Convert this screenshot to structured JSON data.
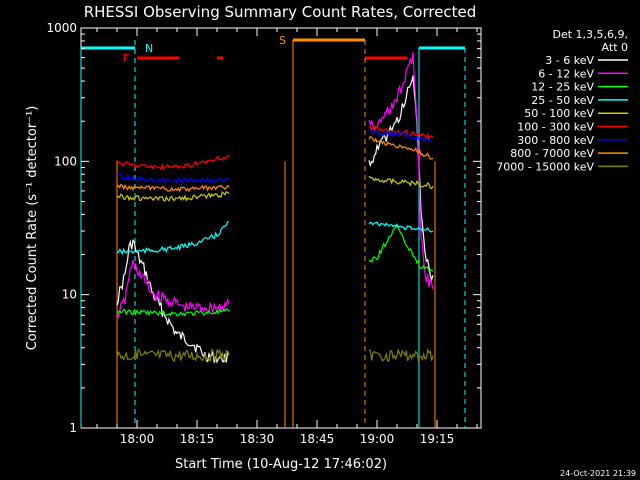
{
  "chart_data": {
    "type": "line",
    "title": "RHESSI Observing Summary Count Rates, Corrected",
    "xlabel": "Start Time (10-Aug-12 17:46:02)",
    "ylabel": "Corrected Count Rate (s⁻¹ detector⁻¹)",
    "y_scale": "log",
    "ylim": [
      1,
      1000
    ],
    "xlim_minutes": [
      0,
      100
    ],
    "x_tick_labels": [
      "18:00",
      "18:15",
      "18:30",
      "18:45",
      "19:00",
      "19:15"
    ],
    "y_tick_labels": [
      "1",
      "10",
      "100",
      "1000"
    ],
    "grid": false,
    "legend_position": "right",
    "legend_header": [
      "Det 1,3,5,6,9,",
      "Att 0"
    ],
    "footer": "24-Oct-2021 21:39",
    "flags": [
      {
        "label": "N",
        "color": "#00ffff"
      },
      {
        "label": "F",
        "color": "#ff0000"
      },
      {
        "label": "S",
        "color": "#ff8c00"
      }
    ],
    "series": [
      {
        "name": "3 - 6 keV",
        "color": "#ffffff",
        "seg1": [
          [
            9,
            9
          ],
          [
            11,
            14
          ],
          [
            12,
            22
          ],
          [
            13,
            25
          ],
          [
            14,
            20
          ],
          [
            16,
            15
          ],
          [
            18,
            10
          ],
          [
            21,
            7
          ],
          [
            24,
            5
          ],
          [
            27,
            4.5
          ],
          [
            29,
            4
          ],
          [
            31,
            3.5
          ],
          [
            33,
            3.4
          ],
          [
            35,
            3.3
          ],
          [
            37,
            3.5
          ]
        ],
        "seg2": [
          [
            72,
            95
          ],
          [
            74,
            120
          ],
          [
            76,
            150
          ],
          [
            79,
            200
          ],
          [
            81,
            280
          ],
          [
            82,
            350
          ],
          [
            83,
            420
          ],
          [
            84,
            200
          ],
          [
            85,
            40
          ],
          [
            86,
            20
          ],
          [
            87,
            15
          ],
          [
            88,
            14
          ]
        ]
      },
      {
        "name": "6 - 12 keV",
        "color": "#ff00ff",
        "seg1": [
          [
            9,
            7
          ],
          [
            11,
            9
          ],
          [
            12,
            14
          ],
          [
            13,
            17
          ],
          [
            15,
            14
          ],
          [
            18,
            10
          ],
          [
            22,
            9
          ],
          [
            26,
            8
          ],
          [
            30,
            8
          ],
          [
            34,
            8
          ],
          [
            37,
            8.5
          ]
        ],
        "seg2": [
          [
            72,
            200
          ],
          [
            74,
            180
          ],
          [
            76,
            220
          ],
          [
            79,
            300
          ],
          [
            81,
            420
          ],
          [
            82,
            550
          ],
          [
            83,
            600
          ],
          [
            84,
            200
          ],
          [
            85,
            30
          ],
          [
            86,
            14
          ],
          [
            88,
            11
          ]
        ]
      },
      {
        "name": "12 - 25 keV",
        "color": "#00ff00",
        "seg1": [
          [
            9,
            7.5
          ],
          [
            13,
            7.4
          ],
          [
            18,
            7.3
          ],
          [
            24,
            7.2
          ],
          [
            30,
            7.3
          ],
          [
            37,
            7.5
          ]
        ],
        "seg2": [
          [
            72,
            18
          ],
          [
            74,
            19
          ],
          [
            76,
            24
          ],
          [
            78,
            30
          ],
          [
            79,
            33
          ],
          [
            80,
            28
          ],
          [
            83,
            20
          ],
          [
            85,
            16
          ],
          [
            88,
            15
          ]
        ]
      },
      {
        "name": "25 - 50 keV",
        "color": "#00ffff",
        "seg1": [
          [
            9,
            21
          ],
          [
            13,
            21
          ],
          [
            18,
            21.5
          ],
          [
            22,
            22
          ],
          [
            26,
            23
          ],
          [
            30,
            25
          ],
          [
            34,
            28
          ],
          [
            37,
            35
          ]
        ],
        "seg2": [
          [
            72,
            35
          ],
          [
            75,
            34
          ],
          [
            78,
            33
          ],
          [
            81,
            32
          ],
          [
            84,
            31
          ],
          [
            88,
            30
          ]
        ]
      },
      {
        "name": "50 - 100 keV",
        "color": "#cccc00",
        "seg1": [
          [
            9,
            55
          ],
          [
            14,
            53
          ],
          [
            20,
            52
          ],
          [
            26,
            53
          ],
          [
            32,
            55
          ],
          [
            37,
            57
          ]
        ],
        "seg2": [
          [
            72,
            75
          ],
          [
            76,
            72
          ],
          [
            80,
            70
          ],
          [
            84,
            68
          ],
          [
            88,
            65
          ]
        ]
      },
      {
        "name": "100 - 300 keV",
        "color": "#ff0000",
        "seg1": [
          [
            9,
            98
          ],
          [
            14,
            93
          ],
          [
            20,
            90
          ],
          [
            26,
            92
          ],
          [
            32,
            100
          ],
          [
            37,
            108
          ]
        ],
        "seg2": [
          [
            72,
            180
          ],
          [
            76,
            170
          ],
          [
            80,
            165
          ],
          [
            84,
            160
          ],
          [
            88,
            150
          ]
        ]
      },
      {
        "name": "300 - 800 keV",
        "color": "#0000ff",
        "seg1": [
          [
            9,
            78
          ],
          [
            14,
            74
          ],
          [
            20,
            72
          ],
          [
            26,
            72
          ],
          [
            32,
            72
          ],
          [
            37,
            73
          ]
        ],
        "seg2": [
          [
            72,
            170
          ],
          [
            76,
            162
          ],
          [
            80,
            158
          ],
          [
            84,
            150
          ],
          [
            88,
            140
          ]
        ]
      },
      {
        "name": "800 - 7000 keV",
        "color": "#ff8c00",
        "seg1": [
          [
            9,
            65
          ],
          [
            14,
            63
          ],
          [
            20,
            62
          ],
          [
            26,
            62
          ],
          [
            32,
            63
          ],
          [
            37,
            64
          ]
        ],
        "seg2": [
          [
            72,
            150
          ],
          [
            76,
            138
          ],
          [
            80,
            128
          ],
          [
            84,
            120
          ],
          [
            88,
            105
          ]
        ]
      },
      {
        "name": "7000 - 15000 keV",
        "color": "#808000",
        "seg1": [
          [
            9,
            3.5
          ],
          [
            14,
            3.5
          ],
          [
            20,
            3.5
          ],
          [
            26,
            3.5
          ],
          [
            32,
            3.5
          ],
          [
            37,
            3.5
          ]
        ],
        "seg2": [
          [
            72,
            3.5
          ],
          [
            76,
            3.5
          ],
          [
            80,
            3.5
          ],
          [
            84,
            3.5
          ],
          [
            88,
            3.5
          ]
        ]
      }
    ]
  }
}
